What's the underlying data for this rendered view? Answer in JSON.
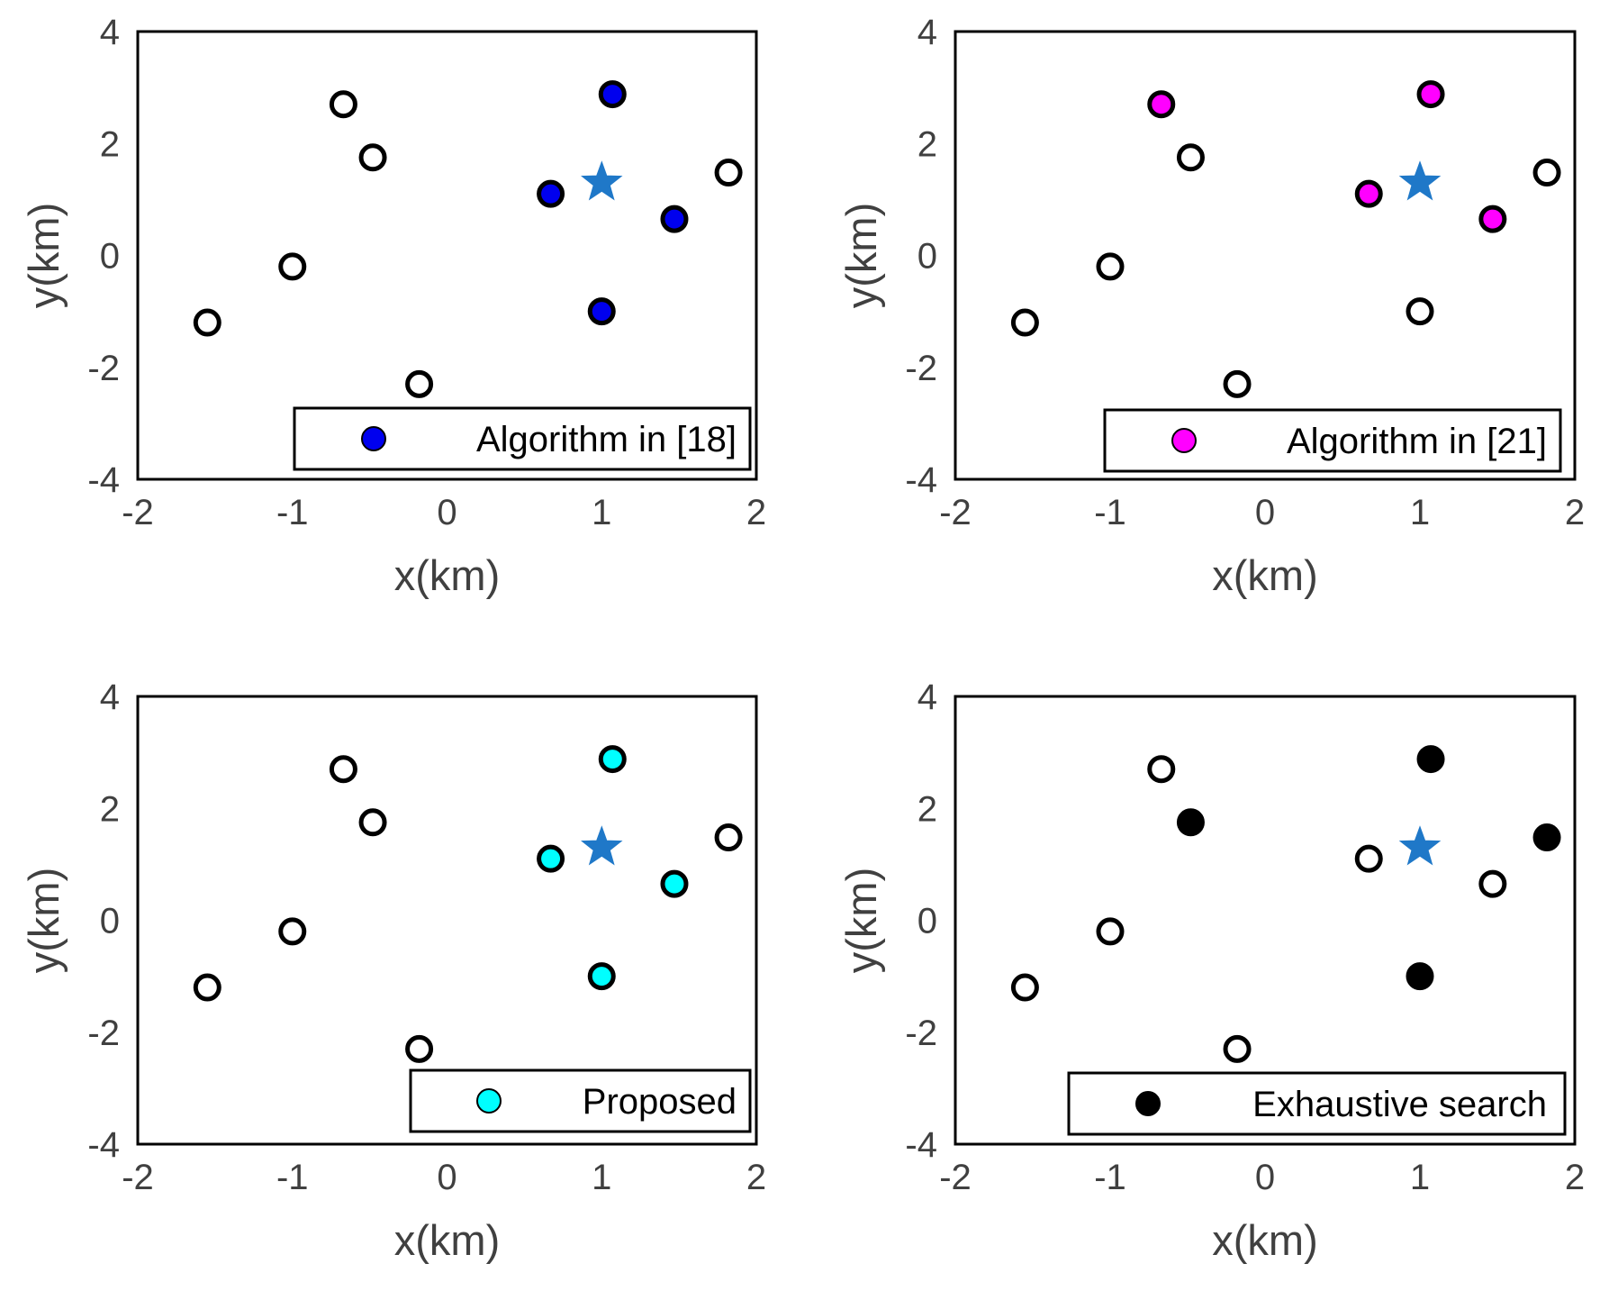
{
  "chart_data": [
    {
      "type": "scatter",
      "xlabel": "x(km)",
      "ylabel": "y(km)",
      "xlim": [
        -2,
        2
      ],
      "ylim": [
        -4,
        4
      ],
      "xticks": [
        "-2",
        "-1",
        "0",
        "1",
        "2"
      ],
      "yticks": [
        "-4",
        "-2",
        "0",
        "2",
        "4"
      ],
      "legend": {
        "label": "Algorithm in [18]",
        "color": "#0000ee",
        "placement": "bottom-right"
      },
      "target": {
        "name": "star",
        "x": 1.0,
        "y": 1.3,
        "color": "#1f78c8"
      },
      "points": [
        {
          "x": -1.55,
          "y": -1.2,
          "selected": false
        },
        {
          "x": -1.0,
          "y": -0.2,
          "selected": false
        },
        {
          "x": -0.67,
          "y": 2.7,
          "selected": false
        },
        {
          "x": -0.48,
          "y": 1.75,
          "selected": false
        },
        {
          "x": -0.18,
          "y": -2.3,
          "selected": false
        },
        {
          "x": 0.67,
          "y": 1.1,
          "selected": true
        },
        {
          "x": 1.0,
          "y": -1.0,
          "selected": true
        },
        {
          "x": 1.07,
          "y": 2.88,
          "selected": true
        },
        {
          "x": 1.47,
          "y": 0.65,
          "selected": true
        },
        {
          "x": 1.82,
          "y": 1.48,
          "selected": false
        }
      ]
    },
    {
      "type": "scatter",
      "xlabel": "x(km)",
      "ylabel": "y(km)",
      "xlim": [
        -2,
        2
      ],
      "ylim": [
        -4,
        4
      ],
      "xticks": [
        "-2",
        "-1",
        "0",
        "1",
        "2"
      ],
      "yticks": [
        "-4",
        "-2",
        "0",
        "2",
        "4"
      ],
      "legend": {
        "label": "Algorithm in [21]",
        "color": "#ff00ff",
        "placement": "bottom-right"
      },
      "target": {
        "name": "star",
        "x": 1.0,
        "y": 1.3,
        "color": "#1f78c8"
      },
      "points": [
        {
          "x": -1.55,
          "y": -1.2,
          "selected": false
        },
        {
          "x": -1.0,
          "y": -0.2,
          "selected": false
        },
        {
          "x": -0.67,
          "y": 2.7,
          "selected": true
        },
        {
          "x": -0.48,
          "y": 1.75,
          "selected": false
        },
        {
          "x": -0.18,
          "y": -2.3,
          "selected": false
        },
        {
          "x": 0.67,
          "y": 1.1,
          "selected": true
        },
        {
          "x": 1.0,
          "y": -1.0,
          "selected": false
        },
        {
          "x": 1.07,
          "y": 2.88,
          "selected": true
        },
        {
          "x": 1.47,
          "y": 0.65,
          "selected": true
        },
        {
          "x": 1.82,
          "y": 1.48,
          "selected": false
        }
      ]
    },
    {
      "type": "scatter",
      "xlabel": "x(km)",
      "ylabel": "y(km)",
      "xlim": [
        -2,
        2
      ],
      "ylim": [
        -4,
        4
      ],
      "xticks": [
        "-2",
        "-1",
        "0",
        "1",
        "2"
      ],
      "yticks": [
        "-4",
        "-2",
        "0",
        "2",
        "4"
      ],
      "legend": {
        "label": "Proposed",
        "color": "#00ffff",
        "placement": "bottom-right"
      },
      "target": {
        "name": "star",
        "x": 1.0,
        "y": 1.3,
        "color": "#1f78c8"
      },
      "points": [
        {
          "x": -1.55,
          "y": -1.2,
          "selected": false
        },
        {
          "x": -1.0,
          "y": -0.2,
          "selected": false
        },
        {
          "x": -0.67,
          "y": 2.7,
          "selected": false
        },
        {
          "x": -0.48,
          "y": 1.75,
          "selected": false
        },
        {
          "x": -0.18,
          "y": -2.3,
          "selected": false
        },
        {
          "x": 0.67,
          "y": 1.1,
          "selected": true
        },
        {
          "x": 1.0,
          "y": -1.0,
          "selected": true
        },
        {
          "x": 1.07,
          "y": 2.88,
          "selected": true
        },
        {
          "x": 1.47,
          "y": 0.65,
          "selected": true
        },
        {
          "x": 1.82,
          "y": 1.48,
          "selected": false
        }
      ]
    },
    {
      "type": "scatter",
      "xlabel": "x(km)",
      "ylabel": "y(km)",
      "xlim": [
        -2,
        2
      ],
      "ylim": [
        -4,
        4
      ],
      "xticks": [
        "-2",
        "-1",
        "0",
        "1",
        "2"
      ],
      "yticks": [
        "-4",
        "-2",
        "0",
        "2",
        "4"
      ],
      "legend": {
        "label": "Exhaustive search",
        "color": "#000000",
        "placement": "bottom-right"
      },
      "target": {
        "name": "star",
        "x": 1.0,
        "y": 1.3,
        "color": "#1f78c8"
      },
      "points": [
        {
          "x": -1.55,
          "y": -1.2,
          "selected": false
        },
        {
          "x": -1.0,
          "y": -0.2,
          "selected": false
        },
        {
          "x": -0.67,
          "y": 2.7,
          "selected": false
        },
        {
          "x": -0.48,
          "y": 1.75,
          "selected": true
        },
        {
          "x": -0.18,
          "y": -2.3,
          "selected": false
        },
        {
          "x": 0.67,
          "y": 1.1,
          "selected": false
        },
        {
          "x": 1.0,
          "y": -1.0,
          "selected": true
        },
        {
          "x": 1.07,
          "y": 2.88,
          "selected": true
        },
        {
          "x": 1.47,
          "y": 0.65,
          "selected": false
        },
        {
          "x": 1.82,
          "y": 1.48,
          "selected": true
        }
      ]
    }
  ]
}
